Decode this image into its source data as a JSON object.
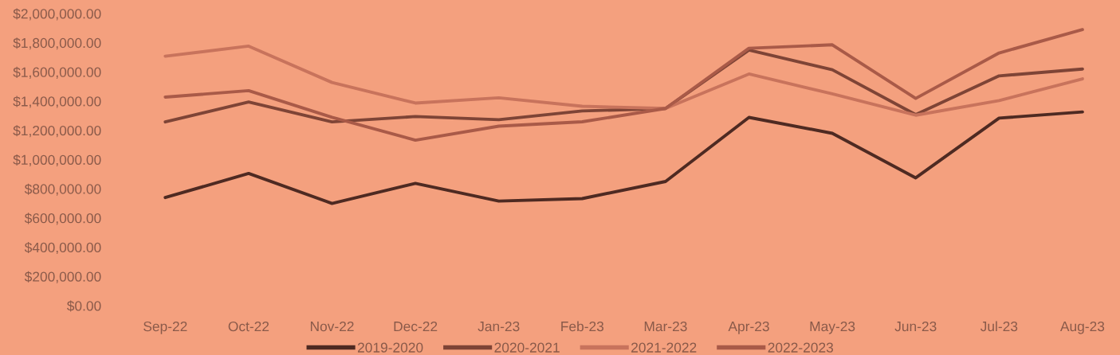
{
  "chart_data": {
    "type": "line",
    "categories": [
      "Sep-22",
      "Oct-22",
      "Nov-22",
      "Dec-22",
      "Jan-23",
      "Feb-23",
      "Mar-23",
      "Apr-23",
      "May-23",
      "Jun-23",
      "Jul-23",
      "Aug-23"
    ],
    "series": [
      {
        "name": "2019-2020",
        "color": "#4e2a22",
        "values": [
          740000,
          905000,
          700000,
          837000,
          716000,
          733000,
          850000,
          1289000,
          1180000,
          875000,
          1284000,
          1326000
        ]
      },
      {
        "name": "2020-2021",
        "color": "#7e4436",
        "values": [
          1258000,
          1394000,
          1258000,
          1295000,
          1273000,
          1333000,
          1350000,
          1750000,
          1615000,
          1308000,
          1573000,
          1620000
        ]
      },
      {
        "name": "2021-2022",
        "color": "#c8735c",
        "values": [
          1708000,
          1777000,
          1528000,
          1387000,
          1423000,
          1365000,
          1350000,
          1586000,
          1450000,
          1304000,
          1404000,
          1553000
        ]
      },
      {
        "name": "2022-2023",
        "color": "#a95a48",
        "values": [
          1428000,
          1472000,
          1290000,
          1133000,
          1229000,
          1259000,
          1350000,
          1762000,
          1786000,
          1419000,
          1730000,
          1890000
        ]
      }
    ],
    "ylim": [
      0,
      2000000
    ],
    "yticks": [
      {
        "value": 0,
        "label": "$0.00"
      },
      {
        "value": 200000,
        "label": "$200,000.00"
      },
      {
        "value": 400000,
        "label": "$400,000.00"
      },
      {
        "value": 600000,
        "label": "$600,000.00"
      },
      {
        "value": 800000,
        "label": "$800,000.00"
      },
      {
        "value": 1000000,
        "label": "$1,000,000.00"
      },
      {
        "value": 1200000,
        "label": "$1,200,000.00"
      },
      {
        "value": 1400000,
        "label": "$1,400,000.00"
      },
      {
        "value": 1600000,
        "label": "$1,600,000.00"
      },
      {
        "value": 1800000,
        "label": "$1,800,000.00"
      },
      {
        "value": 2000000,
        "label": "$2,000,000.00"
      }
    ],
    "grid": false,
    "legend": "bottom"
  }
}
